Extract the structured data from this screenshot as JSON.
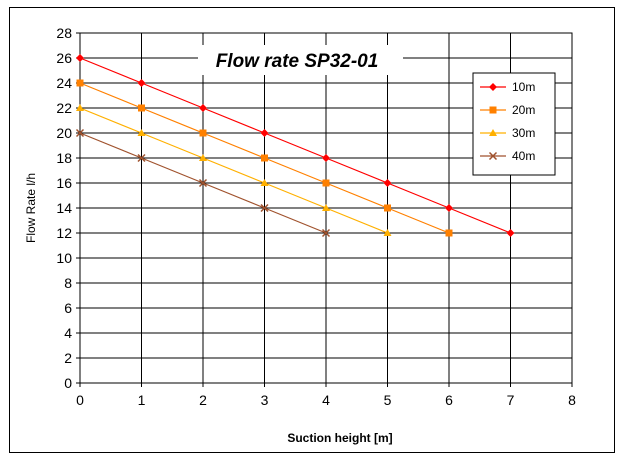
{
  "chart_data": {
    "type": "line",
    "title": "Flow rate SP32-01",
    "xlabel": "Suction height [m]",
    "ylabel": "Flow Rate l/h",
    "xlim": [
      0,
      8
    ],
    "ylim": [
      0,
      28
    ],
    "x_ticks": [
      0,
      1,
      2,
      3,
      4,
      5,
      6,
      7,
      8
    ],
    "y_ticks": [
      0,
      2,
      4,
      6,
      8,
      10,
      12,
      14,
      16,
      18,
      20,
      22,
      24,
      26,
      28
    ],
    "grid": true,
    "legend_position": "top-right",
    "series": [
      {
        "name": "10m",
        "color": "#ff0000",
        "marker": "diamond",
        "x": [
          0,
          1,
          2,
          3,
          4,
          5,
          6,
          7
        ],
        "y": [
          26,
          24,
          22,
          20,
          18,
          16,
          14,
          12
        ]
      },
      {
        "name": "20m",
        "color": "#ff8000",
        "marker": "square",
        "x": [
          0,
          1,
          2,
          3,
          4,
          5,
          6
        ],
        "y": [
          24,
          22,
          20,
          18,
          16,
          14,
          12
        ]
      },
      {
        "name": "30m",
        "color": "#ffb000",
        "marker": "triangle",
        "x": [
          0,
          1,
          2,
          3,
          4,
          5
        ],
        "y": [
          22,
          20,
          18,
          16,
          14,
          12
        ]
      },
      {
        "name": "40m",
        "color": "#a0522d",
        "marker": "x",
        "x": [
          0,
          1,
          2,
          3,
          4
        ],
        "y": [
          20,
          18,
          16,
          14,
          12
        ]
      }
    ]
  }
}
